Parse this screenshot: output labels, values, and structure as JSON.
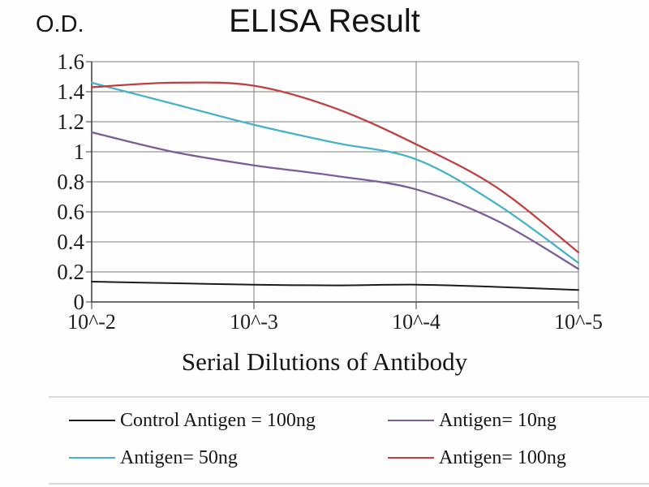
{
  "chart_data": {
    "type": "line",
    "title": "ELISA Result",
    "ylabel": "O.D.",
    "xlabel": "Serial Dilutions of Antibody",
    "x_scale": "log10",
    "xlim_log": [
      -2,
      -5
    ],
    "ylim": [
      0,
      1.6
    ],
    "grid": true,
    "legend_position": "bottom",
    "x_tick_labels": [
      "10^-2",
      "10^-3",
      "10^-4",
      "10^-5"
    ],
    "x_tick_log_values": [
      -2,
      -3,
      -4,
      -5
    ],
    "y_tick_labels": [
      "1.6",
      "1.4",
      "1.2",
      "1",
      "0.8",
      "0.6",
      "0.4",
      "0.2",
      "0"
    ],
    "x_log": [
      -2,
      -2.5,
      -3,
      -3.5,
      -4,
      -4.5,
      -5
    ],
    "series": [
      {
        "name": "Control Antigen = 100ng",
        "color": "#1c1c1c",
        "values": [
          0.135,
          0.125,
          0.115,
          0.11,
          0.115,
          0.1,
          0.08
        ]
      },
      {
        "name": "Antigen= 10ng",
        "color": "#7b5d99",
        "values": [
          1.13,
          1.0,
          0.91,
          0.84,
          0.75,
          0.54,
          0.22
        ]
      },
      {
        "name": "Antigen= 50ng",
        "color": "#46b2c8",
        "values": [
          1.46,
          1.32,
          1.18,
          1.06,
          0.95,
          0.65,
          0.26
        ]
      },
      {
        "name": "Antigen= 100ng",
        "color": "#c04040",
        "values": [
          1.43,
          1.46,
          1.44,
          1.29,
          1.05,
          0.76,
          0.33
        ]
      }
    ],
    "gridline_color": "#7f7f7f",
    "axis_color": "#3c3c3c"
  }
}
